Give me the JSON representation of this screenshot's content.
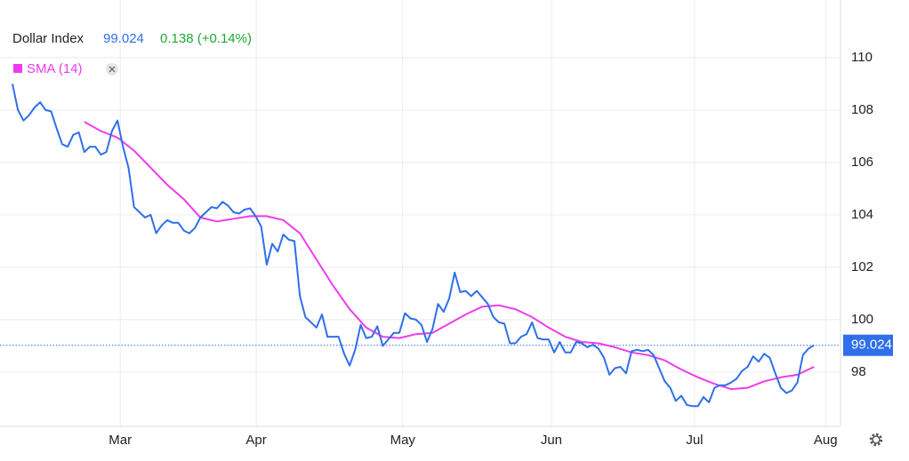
{
  "chart_data": {
    "type": "line",
    "series": [
      {
        "name": "Dollar Index",
        "color": "#2f6fea",
        "values": [
          109.0,
          108.0,
          107.6,
          107.8,
          108.1,
          108.3,
          108.0,
          107.95,
          107.3,
          106.7,
          106.6,
          107.05,
          107.15,
          106.4,
          106.6,
          106.6,
          106.3,
          106.4,
          107.2,
          107.6,
          106.6,
          105.8,
          104.3,
          104.1,
          103.9,
          104.0,
          103.3,
          103.6,
          103.8,
          103.7,
          103.7,
          103.4,
          103.3,
          103.5,
          103.9,
          104.1,
          104.3,
          104.25,
          104.5,
          104.35,
          104.1,
          104.05,
          104.2,
          104.25,
          103.95,
          103.55,
          102.1,
          102.9,
          102.6,
          103.25,
          103.05,
          103.0,
          100.9,
          100.1,
          99.9,
          99.7,
          100.2,
          99.35,
          99.35,
          99.35,
          98.7,
          98.25,
          98.85,
          99.8,
          99.3,
          99.35,
          99.75,
          99.0,
          99.25,
          99.5,
          99.5,
          100.25,
          100.05,
          100.0,
          99.8,
          99.15,
          99.65,
          100.6,
          100.3,
          100.8,
          101.8,
          101.05,
          101.1,
          100.9,
          101.1,
          100.85,
          100.6,
          100.1,
          99.9,
          99.85,
          99.1,
          99.1,
          99.35,
          99.45,
          99.9,
          99.3,
          99.25,
          99.25,
          98.75,
          99.15,
          98.75,
          98.75,
          99.15,
          99.1,
          98.95,
          99.05,
          98.9,
          98.55,
          97.9,
          98.15,
          98.2,
          97.95,
          98.8,
          98.85,
          98.8,
          98.85,
          98.65,
          98.15,
          97.65,
          97.4,
          96.9,
          97.1,
          96.75,
          96.7,
          96.7,
          97.05,
          96.85,
          97.4,
          97.5,
          97.5,
          97.6,
          97.75,
          98.05,
          98.2,
          98.6,
          98.4,
          98.7,
          98.55,
          97.95,
          97.4,
          97.2,
          97.3,
          97.6,
          98.65,
          98.9,
          99.024
        ]
      },
      {
        "name": "SMA (14)",
        "color": "#ee3bee",
        "x": [
          13,
          16,
          19,
          22,
          25,
          28,
          31,
          34,
          37,
          40,
          43,
          46,
          49,
          52,
          55,
          58,
          61,
          64,
          67,
          70,
          73,
          76,
          79,
          82,
          85,
          88,
          91,
          94,
          97,
          100,
          103,
          106,
          109,
          112,
          115,
          118,
          121,
          124,
          127,
          130,
          133,
          136,
          139,
          142,
          145
        ],
        "values": [
          107.55,
          107.2,
          106.95,
          106.45,
          105.8,
          105.15,
          104.6,
          103.9,
          103.75,
          103.85,
          103.95,
          103.95,
          103.8,
          103.3,
          102.3,
          101.3,
          100.4,
          99.7,
          99.35,
          99.3,
          99.45,
          99.5,
          99.85,
          100.2,
          100.5,
          100.55,
          100.4,
          100.1,
          99.7,
          99.35,
          99.15,
          99.1,
          98.95,
          98.75,
          98.65,
          98.45,
          98.1,
          97.8,
          97.55,
          97.35,
          97.4,
          97.65,
          97.8,
          97.9,
          98.2
        ]
      }
    ],
    "last_value": 99.024,
    "change": "0.138 (+0.14%)",
    "ylim": [
      95.93,
      112.2
    ],
    "yticks": [
      98,
      100,
      102,
      104,
      106,
      108,
      110
    ],
    "xlim": [
      -2.25,
      149.8
    ],
    "xticks": [
      {
        "value": 19.5,
        "label": "Mar"
      },
      {
        "value": 44.1,
        "label": "Apr"
      },
      {
        "value": 70.6,
        "label": "May"
      },
      {
        "value": 97.5,
        "label": "Jun"
      },
      {
        "value": 123.4,
        "label": "Jul"
      },
      {
        "value": 147.1,
        "label": "Aug"
      }
    ],
    "grid": true
  }
}
